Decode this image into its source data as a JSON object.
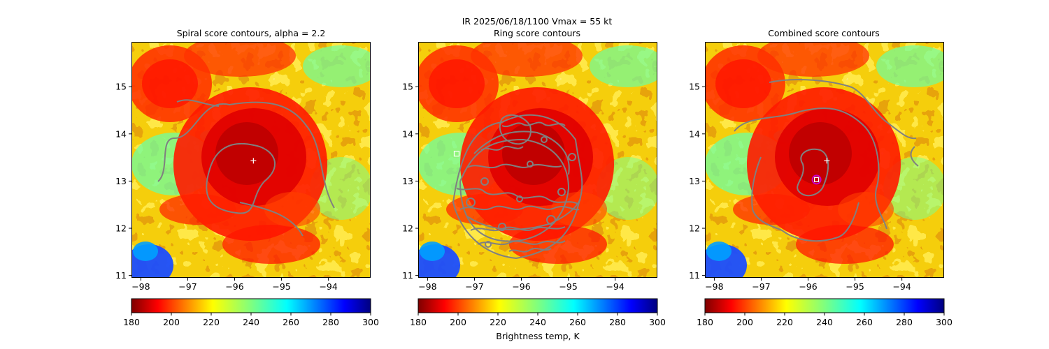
{
  "figure": {
    "suptitle_line1": "IR  2025/06/18/1100    Vmax = 55 kt",
    "colorbar_label": "Brightness temp, K"
  },
  "chart_data": [
    {
      "type": "heatmap",
      "title": "Spiral score contours, alpha =  2.2",
      "xlim": [
        -98.2,
        -93.1
      ],
      "ylim": [
        10.95,
        15.95
      ],
      "xticks": [
        "-98",
        "-97",
        "-96",
        "-95",
        "-94"
      ],
      "yticks": [
        "11",
        "12",
        "13",
        "14",
        "15"
      ],
      "markers": [
        {
          "kind": "white-plus",
          "lon": -95.6,
          "lat": 13.43
        }
      ],
      "colorbar": {
        "cmap": "jet_r",
        "range": [
          180,
          300
        ],
        "ticks": [
          "180",
          "200",
          "220",
          "240",
          "260",
          "280",
          "300"
        ],
        "label": ""
      }
    },
    {
      "type": "heatmap",
      "title": "Ring score contours",
      "xlim": [
        -98.2,
        -93.1
      ],
      "ylim": [
        10.95,
        15.95
      ],
      "xticks": [
        "-98",
        "-97",
        "-96",
        "-95",
        "-94"
      ],
      "yticks": [
        "11",
        "12",
        "13",
        "14",
        "15"
      ],
      "markers": [
        {
          "kind": "white-square",
          "lon": -97.38,
          "lat": 13.58
        }
      ],
      "colorbar": {
        "cmap": "jet_r",
        "range": [
          180,
          300
        ],
        "ticks": [
          "180",
          "200",
          "220",
          "240",
          "260",
          "280",
          "300"
        ],
        "label": "Brightness temp, K"
      }
    },
    {
      "type": "heatmap",
      "title": "Combined score contours",
      "xlim": [
        -98.2,
        -93.1
      ],
      "ylim": [
        10.95,
        15.95
      ],
      "xticks": [
        "-98",
        "-97",
        "-96",
        "-95",
        "-94"
      ],
      "yticks": [
        "11",
        "12",
        "13",
        "14",
        "15"
      ],
      "markers": [
        {
          "kind": "white-plus",
          "lon": -95.6,
          "lat": 13.43
        },
        {
          "kind": "magenta-circle",
          "lon": -95.82,
          "lat": 13.03
        }
      ],
      "colorbar": {
        "cmap": "jet_r",
        "range": [
          180,
          300
        ],
        "ticks": [
          "180",
          "200",
          "220",
          "240",
          "260",
          "280",
          "300"
        ],
        "label": ""
      }
    }
  ]
}
